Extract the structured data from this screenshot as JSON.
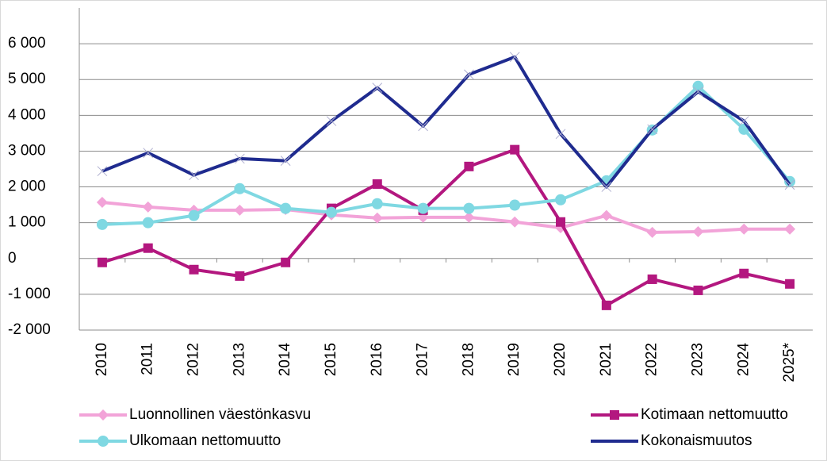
{
  "chart_data": {
    "type": "line",
    "categories": [
      "2010",
      "2011",
      "2012",
      "2013",
      "2014",
      "2015",
      "2016",
      "2017",
      "2018",
      "2019",
      "2020",
      "2021",
      "2022",
      "2023",
      "2024",
      "2025*"
    ],
    "series": [
      {
        "name": "Luonnollinen väestönkasvu",
        "color": "#f2a3d8",
        "marker": "diamond",
        "values": [
          1570,
          1440,
          1350,
          1350,
          1370,
          1220,
          1130,
          1150,
          1150,
          1020,
          860,
          1200,
          730,
          750,
          820,
          820
        ]
      },
      {
        "name": "Kotimaan nettomuutto",
        "color": "#b3177f",
        "marker": "square",
        "values": [
          -110,
          290,
          -310,
          -490,
          -110,
          1400,
          2080,
          1350,
          2570,
          3040,
          1020,
          -1310,
          -580,
          -890,
          -420,
          -710
        ]
      },
      {
        "name": "Ulkomaan nettomuutto",
        "color": "#7fd8e2",
        "marker": "circle",
        "values": [
          950,
          1000,
          1200,
          1950,
          1400,
          1290,
          1530,
          1400,
          1400,
          1490,
          1640,
          2170,
          3590,
          4810,
          3610,
          2150
        ]
      },
      {
        "name": "Kokonaismuutos",
        "color": "#1f2b8f",
        "marker": "x",
        "values": [
          2440,
          2950,
          2330,
          2790,
          2730,
          3840,
          4770,
          3700,
          5140,
          5630,
          3480,
          2000,
          3610,
          4660,
          3840,
          2060
        ]
      }
    ],
    "ylim": [
      -2000,
      7000
    ],
    "yticks": [
      {
        "value": -2000,
        "label": "-2 000"
      },
      {
        "value": -1000,
        "label": "-1 000"
      },
      0,
      {
        "value": 1000,
        "label": "1 000"
      },
      {
        "value": 2000,
        "label": "2 000"
      },
      {
        "value": 3000,
        "label": "3 000"
      },
      {
        "value": 4000,
        "label": "4 000"
      },
      {
        "value": 5000,
        "label": "5 000"
      },
      {
        "value": 6000,
        "label": "6 000"
      }
    ],
    "grid": true,
    "legend": "bottom"
  }
}
